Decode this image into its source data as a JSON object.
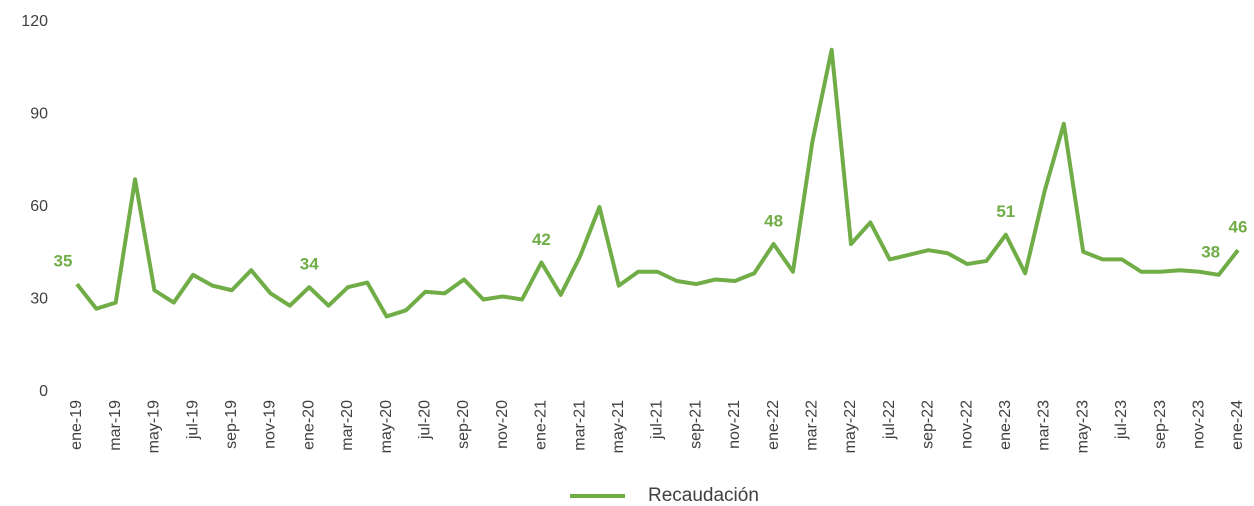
{
  "chart_data": {
    "type": "line",
    "categories": [
      "ene-19",
      null,
      "mar-19",
      null,
      "may-19",
      null,
      "jul-19",
      null,
      "sep-19",
      null,
      "nov-19",
      null,
      "ene-20",
      null,
      "mar-20",
      null,
      "may-20",
      null,
      "jul-20",
      null,
      "sep-20",
      null,
      "nov-20",
      null,
      "ene-21",
      null,
      "mar-21",
      null,
      "may-21",
      null,
      "jul-21",
      null,
      "sep-21",
      null,
      "nov-21",
      null,
      "ene-22",
      null,
      "mar-22",
      null,
      "may-22",
      null,
      "jul-22",
      null,
      "sep-22",
      null,
      "nov-22",
      null,
      "ene-23",
      null,
      "mar-23",
      null,
      "may-23",
      null,
      "jul-23",
      null,
      "sep-23",
      null,
      "nov-23",
      null,
      "ene-24"
    ],
    "series": [
      {
        "name": "Recaudación",
        "color": "#70ad47",
        "values": [
          35,
          27,
          29,
          69,
          33,
          29,
          38,
          34.5,
          33,
          39.5,
          32,
          28,
          34,
          28,
          34,
          35.5,
          24.5,
          26.5,
          32.5,
          32,
          36.5,
          30,
          31,
          30,
          42,
          31.5,
          44,
          60,
          34.5,
          39,
          39,
          36,
          35,
          36.5,
          36,
          38.5,
          48,
          39,
          81,
          111,
          48,
          55,
          43,
          44.5,
          46,
          45,
          41.5,
          42.5,
          51,
          38.5,
          65,
          87,
          45.5,
          43,
          43,
          39,
          39,
          39.5,
          39,
          38,
          46
        ],
        "value_labels": [
          "35",
          null,
          null,
          null,
          null,
          null,
          null,
          null,
          null,
          null,
          null,
          null,
          "34",
          null,
          null,
          null,
          null,
          null,
          null,
          null,
          null,
          null,
          null,
          null,
          "42",
          null,
          null,
          null,
          null,
          null,
          null,
          null,
          null,
          null,
          null,
          null,
          "48",
          null,
          null,
          null,
          null,
          null,
          null,
          null,
          null,
          null,
          null,
          null,
          "51",
          null,
          null,
          null,
          null,
          null,
          null,
          null,
          null,
          null,
          null,
          "38",
          "46"
        ]
      }
    ],
    "ylim": [
      0,
      120
    ],
    "yticks": [
      0,
      30,
      60,
      90,
      120
    ],
    "grid": false,
    "legend": "bottom"
  }
}
